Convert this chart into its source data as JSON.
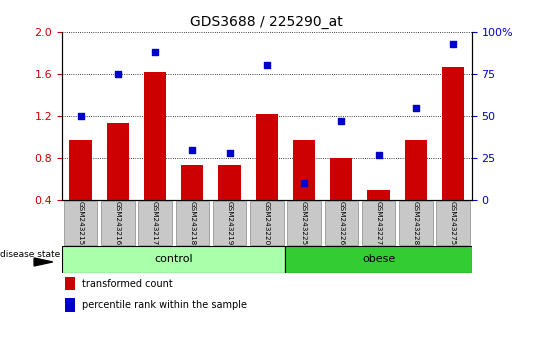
{
  "title": "GDS3688 / 225290_at",
  "samples": [
    "GSM243215",
    "GSM243216",
    "GSM243217",
    "GSM243218",
    "GSM243219",
    "GSM243220",
    "GSM243225",
    "GSM243226",
    "GSM243227",
    "GSM243228",
    "GSM243275"
  ],
  "transformed_count": [
    0.97,
    1.13,
    1.62,
    0.73,
    0.73,
    1.22,
    0.97,
    0.8,
    0.5,
    0.97,
    1.67
  ],
  "percentile_rank_pct": [
    50,
    75,
    88,
    30,
    28,
    80,
    10,
    47,
    27,
    55,
    93
  ],
  "groups": [
    "control",
    "control",
    "control",
    "control",
    "control",
    "control",
    "obese",
    "obese",
    "obese",
    "obese",
    "obese"
  ],
  "ylim_left": [
    0.4,
    2.0
  ],
  "ylim_right": [
    0,
    100
  ],
  "yticks_left": [
    0.4,
    0.8,
    1.2,
    1.6,
    2.0
  ],
  "yticks_right": [
    0,
    25,
    50,
    75,
    100
  ],
  "bar_color": "#cc0000",
  "dot_color": "#0000cc",
  "control_color": "#aaffaa",
  "obese_color": "#33cc33",
  "tick_label_color_left": "#cc0000",
  "tick_label_color_right": "#0000cc",
  "legend_bar_label": "transformed count",
  "legend_dot_label": "percentile rank within the sample",
  "group_label": "disease state"
}
